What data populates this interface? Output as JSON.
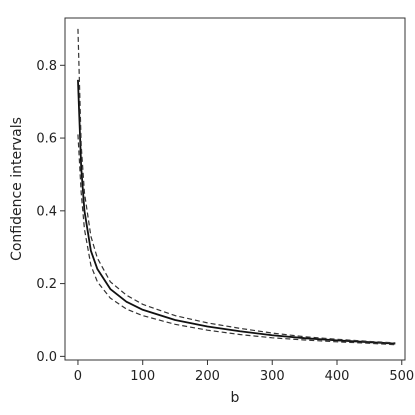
{
  "chart_data": {
    "type": "line",
    "title": "",
    "xlabel": "b",
    "ylabel": "Confidence intervals",
    "xlim": [
      -20,
      505
    ],
    "ylim": [
      -0.01,
      0.93
    ],
    "xticks": [
      0,
      100,
      200,
      300,
      400,
      500
    ],
    "yticks": [
      0.0,
      0.2,
      0.4,
      0.6,
      0.8
    ],
    "xtick_labels": [
      "0",
      "100",
      "200",
      "300",
      "400",
      "500"
    ],
    "ytick_labels": [
      "0.0",
      "0.2",
      "0.4",
      "0.6",
      "0.8"
    ],
    "grid": false,
    "legend": "none",
    "x": [
      0,
      5,
      10,
      20,
      30,
      50,
      75,
      100,
      150,
      200,
      250,
      300,
      350,
      400,
      450,
      490
    ],
    "series": [
      {
        "style": "solid",
        "color": "#111111",
        "values": [
          0.76,
          0.52,
          0.4,
          0.29,
          0.24,
          0.185,
          0.15,
          0.128,
          0.1,
          0.082,
          0.069,
          0.058,
          0.05,
          0.044,
          0.039,
          0.035
        ]
      },
      {
        "style": "dashed",
        "color": "#333333",
        "values": [
          0.9,
          0.58,
          0.45,
          0.33,
          0.27,
          0.205,
          0.168,
          0.143,
          0.112,
          0.092,
          0.077,
          0.064,
          0.054,
          0.047,
          0.041,
          0.037
        ]
      },
      {
        "style": "dashed",
        "color": "#333333",
        "values": [
          0.61,
          0.45,
          0.35,
          0.25,
          0.205,
          0.16,
          0.13,
          0.112,
          0.088,
          0.072,
          0.06,
          0.051,
          0.045,
          0.04,
          0.036,
          0.032
        ]
      }
    ]
  }
}
